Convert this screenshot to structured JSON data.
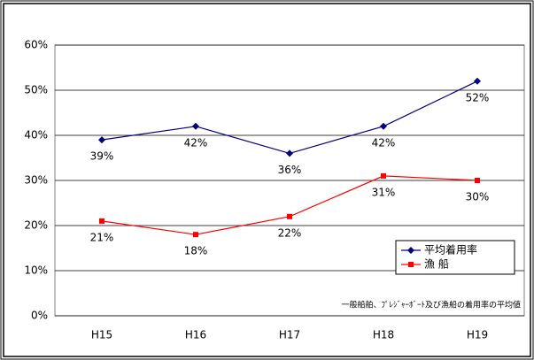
{
  "chart_data": {
    "type": "line",
    "categories": [
      "H15",
      "H16",
      "H17",
      "H18",
      "H19"
    ],
    "series": [
      {
        "name": "平均着用率",
        "color": "#000080",
        "marker": "diamond",
        "values": [
          39,
          42,
          36,
          42,
          52
        ],
        "value_labels": [
          "39%",
          "42%",
          "36%",
          "42%",
          "52%"
        ]
      },
      {
        "name": "漁 船",
        "color": "#ff0000",
        "marker": "square",
        "values": [
          21,
          18,
          22,
          31,
          30
        ],
        "value_labels": [
          "21%",
          "18%",
          "22%",
          "31%",
          "30%"
        ]
      }
    ],
    "ylim": [
      0,
      60
    ],
    "yticks": [
      {
        "value": 0,
        "label": "0%"
      },
      {
        "value": 10,
        "label": "10%"
      },
      {
        "value": 20,
        "label": "20%"
      },
      {
        "value": 30,
        "label": "30%"
      },
      {
        "value": 40,
        "label": "40%"
      },
      {
        "value": 50,
        "label": "50%"
      },
      {
        "value": 60,
        "label": "60%"
      }
    ],
    "grid": true,
    "legend": "lower right",
    "annotation": "一般船舶、ﾌﾟﾚｼﾞｬｰﾎﾞｰﾄ及び漁船の着用率の平均値"
  }
}
